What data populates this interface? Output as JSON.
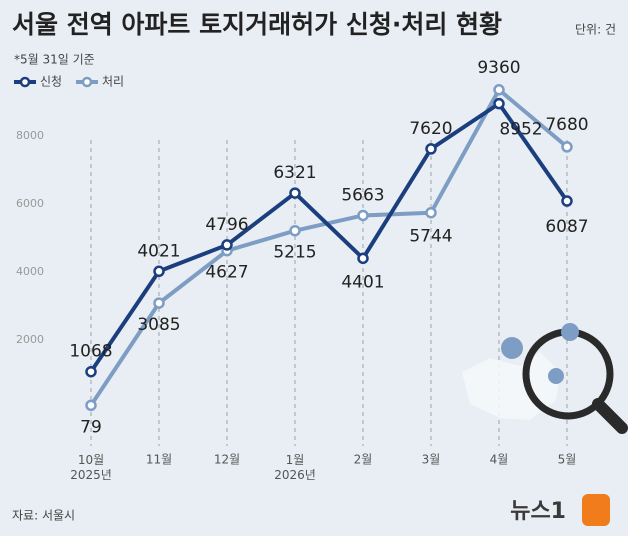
{
  "chart_data": {
    "type": "line",
    "title": "서울 전역 아파트 토지거래허가 신청·처리 현황",
    "unit": "단위: 건",
    "note": "*5월 31일 기준",
    "source": "자료: 서울시",
    "brand": "뉴스1",
    "categories": [
      "10월\n2025년",
      "11월",
      "12월",
      "1월\n2026년",
      "2월",
      "3월",
      "4월",
      "5월"
    ],
    "series": [
      {
        "name": "신청",
        "color": "#1b3f7e",
        "values": [
          1068,
          4021,
          4796,
          6321,
          4401,
          7620,
          8952,
          6087
        ]
      },
      {
        "name": "처리",
        "color": "#7d9dc5",
        "values": [
          79,
          3085,
          4627,
          5215,
          5663,
          5744,
          9360,
          7680
        ]
      }
    ],
    "ylim": [
      0,
      10000
    ],
    "yticks": [
      2000,
      4000,
      6000,
      8000
    ]
  }
}
